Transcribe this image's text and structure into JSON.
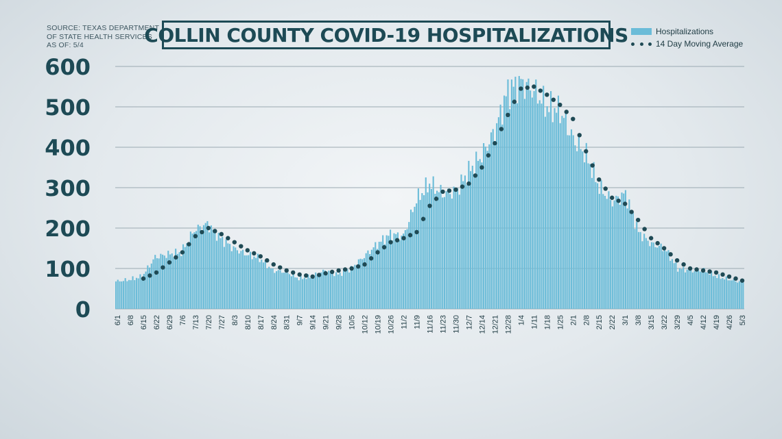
{
  "source": {
    "line1": "SOURCE: TEXAS DEPARTMENT",
    "line2": "OF STATE HEALTH SERVICES",
    "line3": "AS OF: 5/4"
  },
  "chart_data": {
    "type": "bar",
    "title": "COLLIN COUNTY COVID-19 HOSPITALIZATIONS",
    "xlabel": "",
    "ylabel": "",
    "ylim": [
      0,
      600
    ],
    "yticks": [
      0,
      100,
      200,
      300,
      400,
      500,
      600
    ],
    "grid": true,
    "legend_position": "top-right",
    "x_tick_labels": [
      "6/1",
      "6/8",
      "6/15",
      "6/22",
      "6/29",
      "7/6",
      "7/13",
      "7/20",
      "7/27",
      "8/3",
      "8/10",
      "8/17",
      "8/24",
      "8/31",
      "9/7",
      "9/14",
      "9/21",
      "9/28",
      "10/5",
      "10/12",
      "10/19",
      "10/26",
      "11/2",
      "11/9",
      "11/16",
      "11/23",
      "11/30",
      "12/7",
      "12/14",
      "12/21",
      "12/28",
      "1/4",
      "1/11",
      "1/18",
      "1/25",
      "2/1",
      "2/8",
      "2/15",
      "2/22",
      "3/1",
      "3/8",
      "3/15",
      "3/22",
      "3/29",
      "4/5",
      "4/12",
      "4/19",
      "4/26",
      "5/3"
    ],
    "series": [
      {
        "name": "Hospitalizations",
        "color": "#6bbcd8",
        "weekly_values": [
          68,
          72,
          80,
          128,
          135,
          140,
          195,
          210,
          175,
          150,
          135,
          125,
          95,
          92,
          75,
          80,
          95,
          85,
          100,
          130,
          160,
          185,
          180,
          270,
          310,
          285,
          290,
          340,
          380,
          440,
          540,
          560,
          540,
          500,
          490,
          420,
          380,
          300,
          265,
          285,
          190,
          160,
          150,
          100,
          95,
          95,
          80,
          72,
          65
        ]
      },
      {
        "name": "14 Day Moving Average",
        "color": "#1f4a55",
        "weekly_values": [
          null,
          null,
          75,
          90,
          115,
          140,
          180,
          200,
          185,
          165,
          145,
          130,
          110,
          95,
          85,
          80,
          88,
          95,
          100,
          110,
          140,
          165,
          175,
          190,
          255,
          290,
          295,
          310,
          350,
          410,
          480,
          545,
          550,
          530,
          505,
          470,
          390,
          320,
          275,
          260,
          220,
          175,
          150,
          120,
          100,
          95,
          90,
          80,
          70
        ]
      }
    ]
  }
}
